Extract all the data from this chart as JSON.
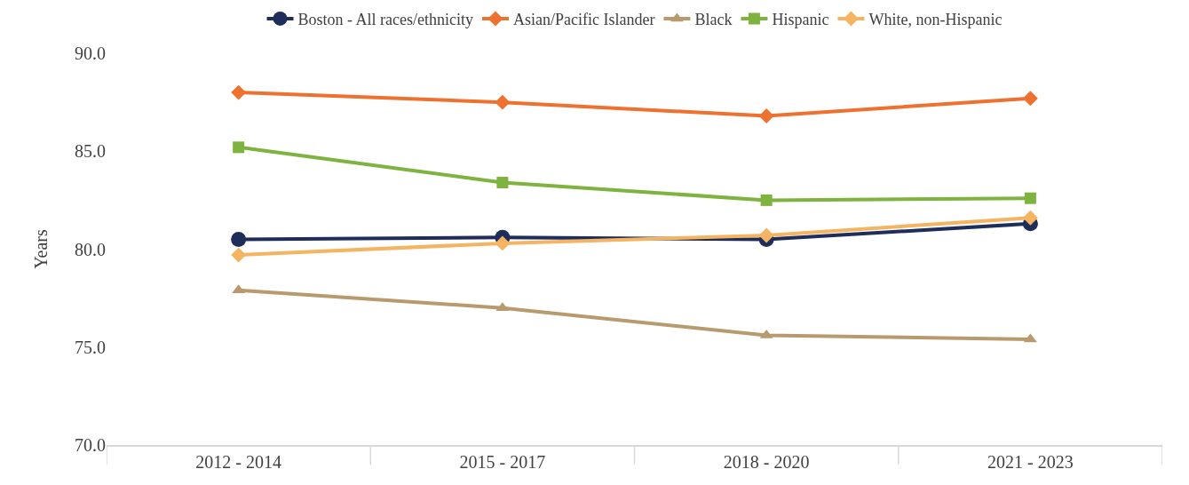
{
  "chart_data": {
    "type": "line",
    "ylabel": "Years",
    "categories": [
      "2012 - 2014",
      "2015 - 2017",
      "2018 - 2020",
      "2021 - 2023"
    ],
    "series": [
      {
        "name": "Boston - All races/ethnicity",
        "color": "#1f2d5a",
        "marker": "circle",
        "values": [
          80.5,
          80.6,
          80.5,
          81.3
        ]
      },
      {
        "name": "Asian/Pacific Islander",
        "color": "#ee7130",
        "marker": "diamond",
        "values": [
          88.0,
          87.5,
          86.8,
          87.7
        ]
      },
      {
        "name": "Black",
        "color": "#b89a6e",
        "marker": "triangle",
        "values": [
          77.9,
          77.0,
          75.6,
          75.4
        ]
      },
      {
        "name": "Hispanic",
        "color": "#7db33e",
        "marker": "square",
        "values": [
          85.2,
          83.4,
          82.5,
          82.6
        ]
      },
      {
        "name": "White, non-Hispanic",
        "color": "#f5b461",
        "marker": "diamond",
        "values": [
          79.7,
          80.3,
          80.7,
          81.6
        ]
      }
    ],
    "ylim": [
      70,
      90
    ],
    "yticks": [
      {
        "value": 70,
        "label": "70.0"
      },
      {
        "value": 75,
        "label": "75.0"
      },
      {
        "value": 80,
        "label": "80.0"
      },
      {
        "value": 85,
        "label": "85.0"
      },
      {
        "value": 90,
        "label": "90.0"
      }
    ],
    "grid": false,
    "legend": "top",
    "line_style": "solid"
  }
}
